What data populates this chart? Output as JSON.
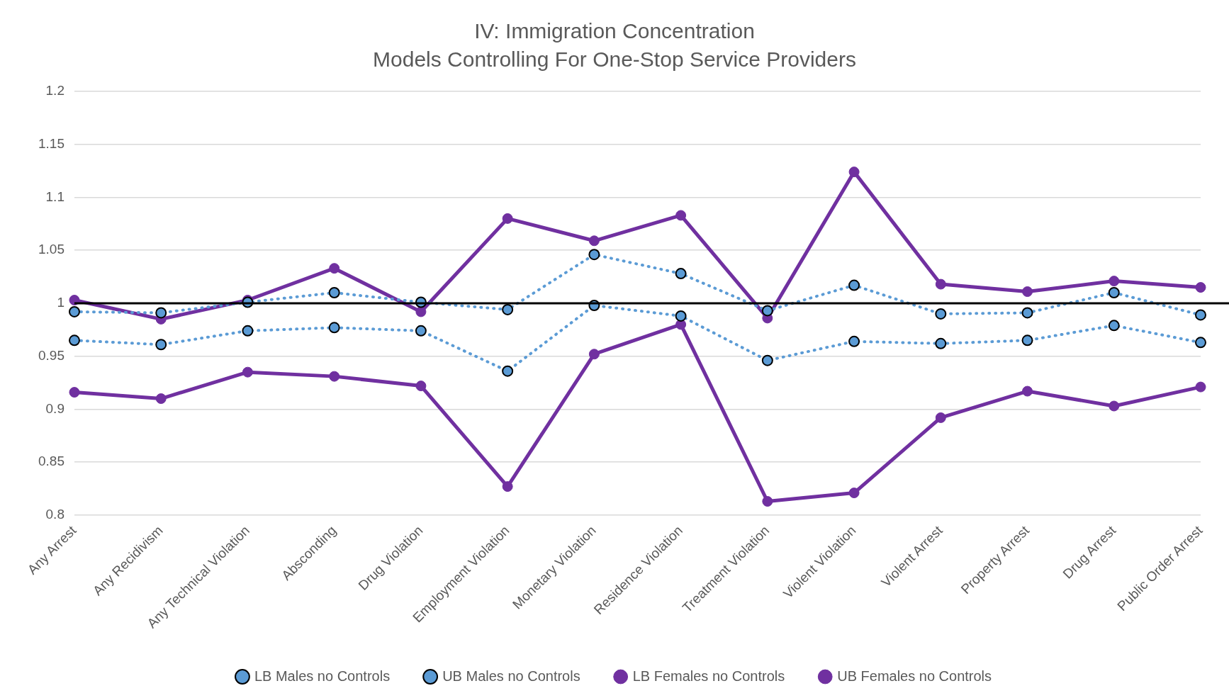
{
  "chart_data": {
    "type": "line",
    "title": "IV: Immigration Concentration",
    "subtitle": "Models Controlling For One-Stop Service Providers",
    "categories": [
      "Any Arrest",
      "Any Recidivism",
      "Any Technical Violation",
      "Absconding",
      "Drug Violation",
      "Employment Violation",
      "Monetary Violation",
      "Residence Violation",
      "Treatment Violation",
      "Violent Violation",
      "Violent Arrest",
      "Property Arrest",
      "Drug Arrest",
      "Public Order Arrest"
    ],
    "series": [
      {
        "name": "LB Males no Controls",
        "color": "#5b9bd5",
        "line_style": "dotted",
        "values": [
          0.965,
          0.961,
          0.974,
          0.977,
          0.974,
          0.936,
          0.998,
          0.988,
          0.946,
          0.964,
          0.962,
          0.965,
          0.979,
          0.963
        ]
      },
      {
        "name": "UB Males no Controls",
        "color": "#5b9bd5",
        "line_style": "dotted",
        "values": [
          0.992,
          0.991,
          1.001,
          1.01,
          1.001,
          0.994,
          1.046,
          1.028,
          0.993,
          1.017,
          0.99,
          0.991,
          1.01,
          0.989
        ]
      },
      {
        "name": "LB Females no Controls",
        "color": "#7030a0",
        "line_style": "solid",
        "values": [
          0.916,
          0.91,
          0.935,
          0.931,
          0.922,
          0.827,
          0.952,
          0.98,
          0.813,
          0.821,
          0.892,
          0.917,
          0.903,
          0.921
        ]
      },
      {
        "name": "UB Females no Controls",
        "color": "#7030a0",
        "line_style": "solid",
        "values": [
          1.003,
          0.985,
          1.003,
          1.033,
          0.992,
          1.08,
          1.059,
          1.083,
          0.986,
          1.124,
          1.018,
          1.011,
          1.021,
          1.015
        ]
      }
    ],
    "ylim": [
      0.8,
      1.2
    ],
    "yticks": [
      0.8,
      0.85,
      0.9,
      0.95,
      1,
      1.05,
      1.1,
      1.15,
      1.2
    ],
    "ref_lines": [
      {
        "axis": "y",
        "value": 1,
        "color": "#000000"
      }
    ],
    "grid": "y",
    "legend": "bottom",
    "marker": "circle"
  }
}
